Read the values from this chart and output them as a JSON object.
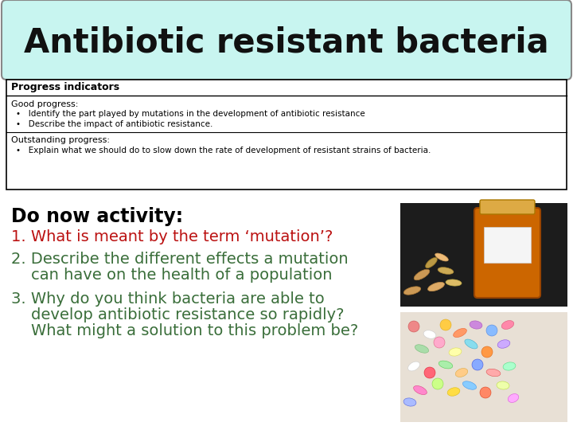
{
  "title": "Antibiotic resistant bacteria",
  "title_bg": "#c8f5f0",
  "title_font_size": 30,
  "progress_header": "Progress indicators",
  "good_progress_label": "Good progress:",
  "good_progress_items": [
    "Identify the part played by mutations in the development of antibiotic resistance",
    "Describe the impact of antibiotic resistance."
  ],
  "outstanding_label": "Outstanding progress:",
  "outstanding_items": [
    "Explain what we should do to slow down the rate of development of resistant strains of bacteria."
  ],
  "do_now_title": "Do now activity:",
  "q1": "1. What is meant by the term ‘mutation’?",
  "q2_line1": "2. Describe the different effects a mutation",
  "q2_line2": "    can have on the health of a population",
  "q3_line1": "3. Why do you think bacteria are able to",
  "q3_line2": "    develop antibiotic resistance so rapidly?",
  "q3_line3": "    What might a solution to this problem be?",
  "q1_color": "#bb1111",
  "q2_color": "#3a6e3a",
  "q3_color": "#3a6e3a",
  "do_now_color": "#000000",
  "background_color": "#ffffff"
}
